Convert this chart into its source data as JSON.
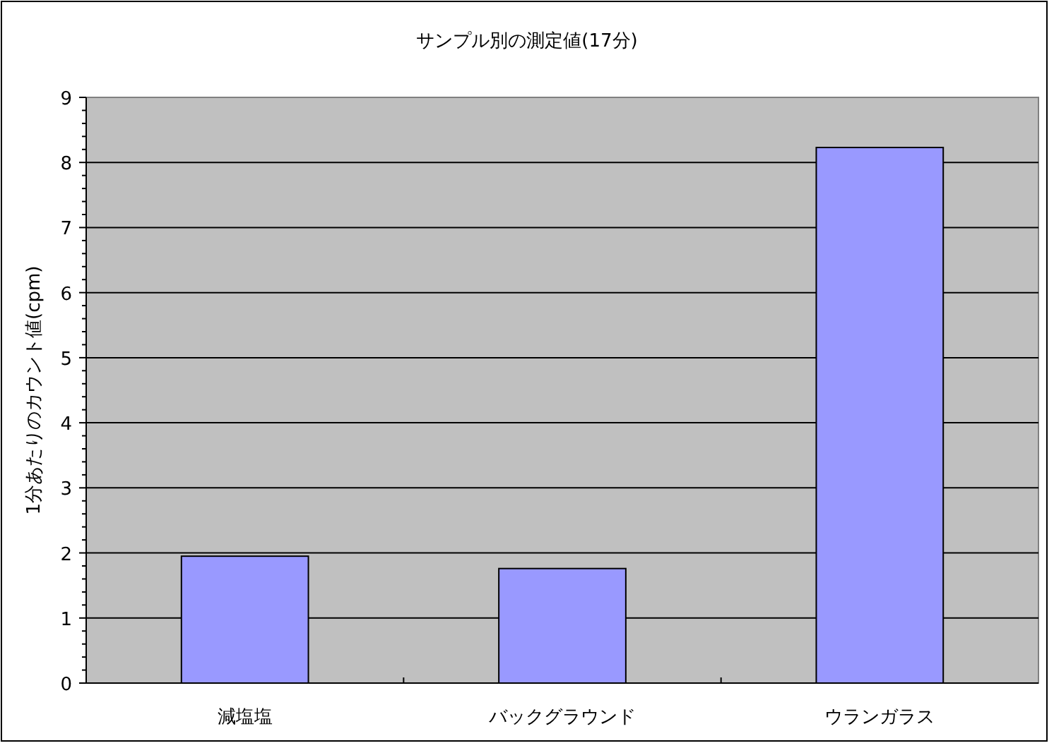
{
  "chart_data": {
    "type": "bar",
    "title": "サンプル別の測定値(17分)",
    "ylabel": "1分あたりのカウント値(cpm)",
    "categories": [
      "減塩塩",
      "バックグラウンド",
      "ウランガラス"
    ],
    "values": [
      1.95,
      1.76,
      8.23
    ],
    "color": "#9999ff",
    "ylim": [
      0,
      9
    ],
    "yticks": [
      0,
      1,
      2,
      3,
      4,
      5,
      6,
      7,
      8,
      9
    ],
    "grid": "y"
  }
}
